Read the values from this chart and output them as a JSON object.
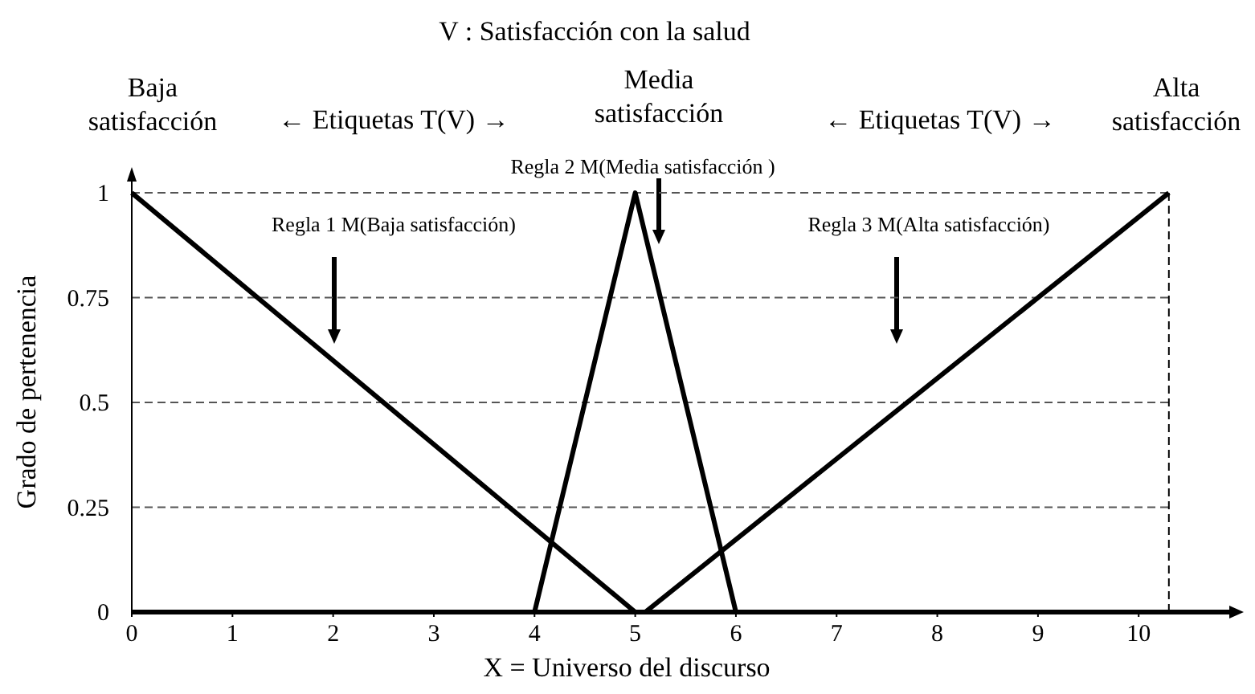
{
  "chart_data": {
    "type": "line",
    "title": "V : Satisfacción con la salud",
    "xlabel": "X = Universo del discurso",
    "ylabel": "Grado de pertenencia",
    "series": [
      {
        "color": "#000000",
        "x": [
          0,
          5
        ],
        "values": [
          1,
          0
        ]
      },
      {
        "color": "#000000",
        "x": [
          4,
          5,
          6
        ],
        "values": [
          0,
          1,
          0
        ]
      },
      {
        "color": "#000000",
        "x": [
          5.1,
          10.3
        ],
        "values": [
          0,
          1
        ]
      }
    ],
    "xlim": [
      0,
      10.9
    ],
    "ylim": [
      0,
      1.05
    ],
    "xticks": [
      0,
      1,
      2,
      3,
      4,
      5,
      6,
      7,
      8,
      9,
      10
    ],
    "yticks": [
      0,
      0.25,
      0.5,
      0.75,
      1
    ],
    "grid": "y",
    "marker": "none",
    "line_style": "solid",
    "ref_lines": [
      {
        "axis": "x",
        "value": 10.3,
        "line_style": "dashed",
        "color": "#000000"
      }
    ],
    "annotations": [
      "Baja\nsatisfacción",
      "← Etiquetas T(V) →",
      "Media\nsatisfacción",
      "← Etiquetas T(V) →",
      "Alta\nsatisfacción",
      "Regla 1 M(Baja satisfacción)",
      "Regla 2 M(Media satisfacción )",
      "Regla 3 M(Alta satisfacción)"
    ]
  }
}
